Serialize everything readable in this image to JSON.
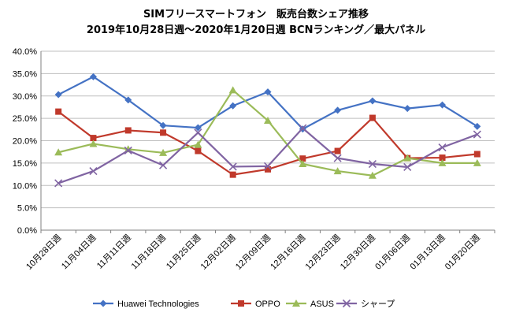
{
  "chart_data": {
    "type": "line",
    "title": "SIMフリースマートフォン　販売台数シェア推移",
    "subtitle": "2019年10月28日週〜2020年1月20日週  BCNランキング／最大パネル",
    "xlabel": "",
    "ylabel": "",
    "ylim": [
      0,
      40
    ],
    "y_ticks": [
      "0.0%",
      "5.0%",
      "10.0%",
      "15.0%",
      "20.0%",
      "25.0%",
      "30.0%",
      "35.0%",
      "40.0%"
    ],
    "grid": true,
    "legend_position": "bottom",
    "categories": [
      "10月28日週",
      "11月04日週",
      "11月11日週",
      "11月18日週",
      "11月25日週",
      "12月02日週",
      "12月09日週",
      "12月16日週",
      "12月23日週",
      "12月30日週",
      "01月06日週",
      "01月13日週",
      "01月20日週"
    ],
    "series": [
      {
        "name": "Huawei Technologies",
        "color": "#4472C4",
        "marker": "diamond",
        "values": [
          30.3,
          34.3,
          29.1,
          23.4,
          22.9,
          27.8,
          30.9,
          22.6,
          26.8,
          28.9,
          27.2,
          28.0,
          23.2
        ]
      },
      {
        "name": "OPPO",
        "color": "#C0392B",
        "marker": "square",
        "values": [
          26.5,
          20.6,
          22.3,
          21.8,
          17.7,
          12.4,
          13.6,
          16.0,
          17.7,
          25.1,
          16.1,
          16.2,
          17.0
        ]
      },
      {
        "name": "ASUS",
        "color": "#9BBB59",
        "marker": "triangle",
        "values": [
          17.4,
          19.3,
          18.1,
          17.3,
          19.1,
          31.3,
          24.5,
          14.8,
          13.2,
          12.2,
          16.1,
          15.0,
          15.0
        ]
      },
      {
        "name": "シャープ",
        "color": "#8064A2",
        "marker": "x",
        "values": [
          10.5,
          13.2,
          17.8,
          14.5,
          21.8,
          14.2,
          14.3,
          22.8,
          16.1,
          14.8,
          14.1,
          18.5,
          21.4
        ]
      }
    ]
  }
}
